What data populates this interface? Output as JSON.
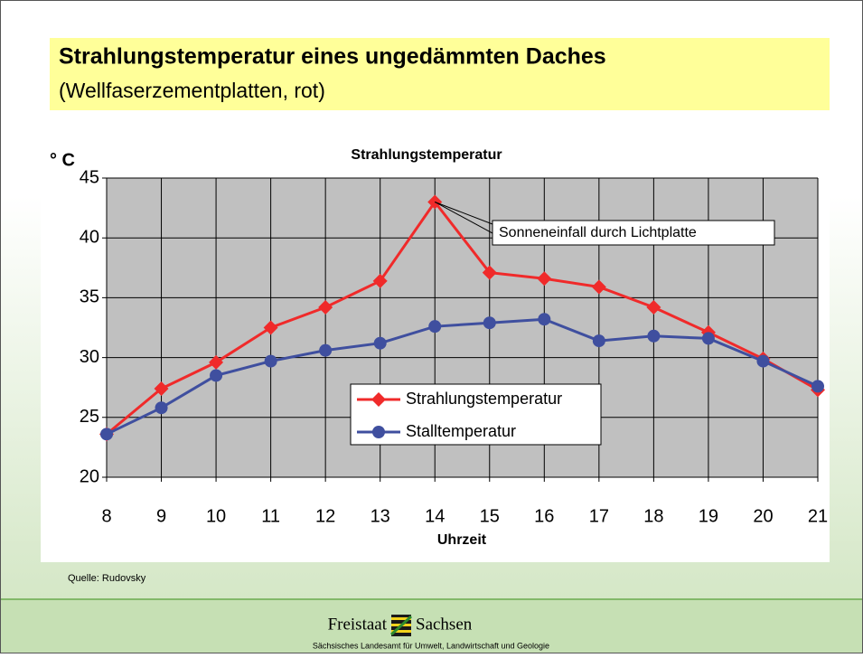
{
  "slide": {
    "title": "Strahlungstemperatur eines ungedämmten Daches",
    "subtitle": "(Wellfaserzementplatten, rot)",
    "source": "Quelle: Rudovsky",
    "footer_left": "Freistaat",
    "footer_right": "Sachsen",
    "footer_sub": "Sächsisches Landesamt für Umwelt, Landwirtschaft und Geologie"
  },
  "chart_data": {
    "type": "line",
    "title": "Strahlungstemperatur",
    "y_label": "° C",
    "x_label": "Uhrzeit",
    "x": [
      8,
      9,
      10,
      11,
      12,
      13,
      14,
      15,
      16,
      17,
      18,
      19,
      20,
      21
    ],
    "series": [
      {
        "name": "Strahlungstemperatur",
        "color": "#f02a2a",
        "marker": "diamond",
        "values": [
          23.6,
          27.4,
          29.6,
          32.5,
          34.2,
          36.4,
          43,
          37.1,
          36.6,
          35.9,
          34.2,
          32.1,
          29.9,
          27.3
        ]
      },
      {
        "name": "Stalltemperatur",
        "color": "#3f4f9f",
        "marker": "circle",
        "values": [
          23.6,
          25.8,
          28.5,
          29.7,
          30.6,
          31.2,
          32.6,
          32.9,
          33.2,
          31.4,
          31.8,
          31.6,
          29.7,
          27.6
        ]
      }
    ],
    "xlim": [
      8,
      21
    ],
    "xticks": [
      8,
      9,
      10,
      11,
      12,
      13,
      14,
      15,
      16,
      17,
      18,
      19,
      20,
      21
    ],
    "ylim": [
      20,
      45
    ],
    "yticks": [
      20,
      25,
      30,
      35,
      40,
      45
    ],
    "grid": true,
    "annotation": "Sonneneinfall durch Lichtplatte"
  }
}
